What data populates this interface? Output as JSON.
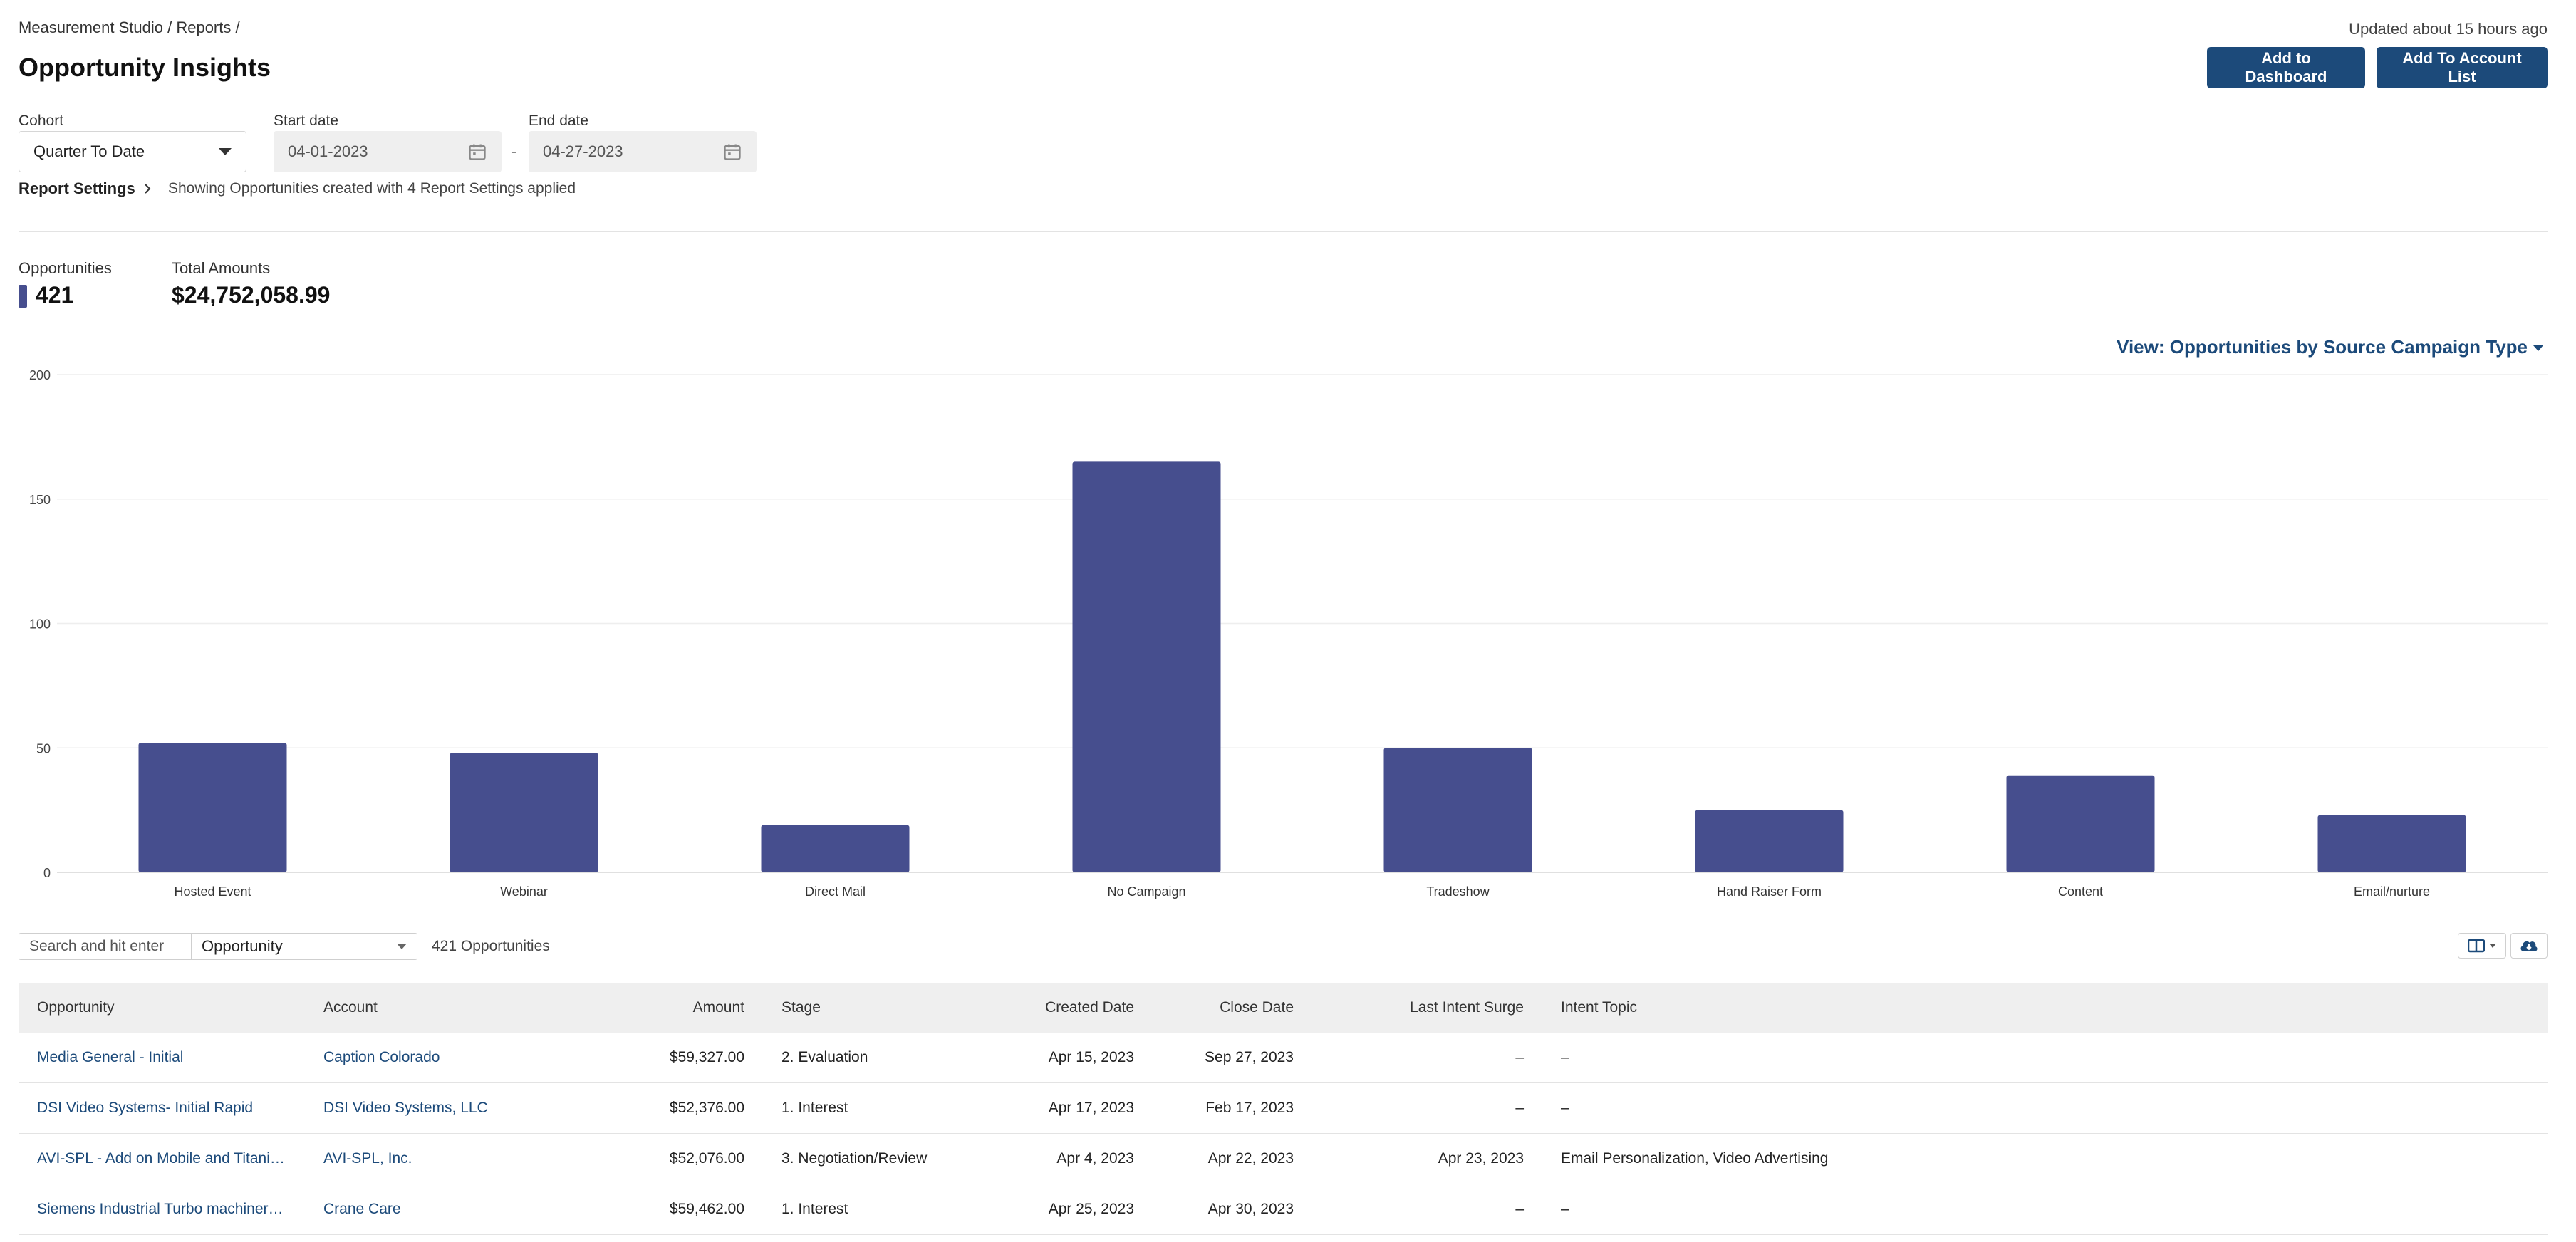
{
  "breadcrumb": "Measurement Studio / Reports /",
  "updated": "Updated about 15 hours ago",
  "title": "Opportunity Insights",
  "actions": {
    "add_dashboard": "Add to Dashboard",
    "add_account_list": "Add To Account List"
  },
  "filters": {
    "cohort_label": "Cohort",
    "cohort_value": "Quarter To Date",
    "start_label": "Start date",
    "start_value": "04-01-2023",
    "end_label": "End date",
    "end_value": "04-27-2023",
    "separator": "-"
  },
  "report_settings": {
    "label": "Report Settings",
    "note": "Showing Opportunities created with 4 Report Settings applied"
  },
  "stats": {
    "opportunities_label": "Opportunities",
    "opportunities_value": "421",
    "total_label": "Total Amounts",
    "total_value": "$24,752,058.99"
  },
  "view_selector": "View: Opportunities by Source Campaign Type",
  "chart_data": {
    "type": "bar",
    "categories": [
      "Hosted Event",
      "Webinar",
      "Direct Mail",
      "No Campaign",
      "Tradeshow",
      "Hand Raiser Form",
      "Content",
      "Email/nurture"
    ],
    "values": [
      52,
      48,
      19,
      165,
      50,
      25,
      39,
      23
    ],
    "ylim": [
      0,
      200
    ],
    "yticks": [
      0,
      50,
      100,
      150,
      200
    ],
    "grid": true,
    "color": "#464e8e"
  },
  "table_controls": {
    "search_placeholder": "Search and hit enter",
    "type_value": "Opportunity",
    "count": "421 Opportunities"
  },
  "table": {
    "columns": [
      "Opportunity",
      "Account",
      "Amount",
      "Stage",
      "Created Date",
      "Close Date",
      "Last Intent Surge",
      "Intent Topic"
    ],
    "rows": [
      [
        "Media General - Initial",
        "Caption Colorado",
        "$59,327.00",
        "2. Evaluation",
        "Apr 15, 2023",
        "Sep 27, 2023",
        "–",
        "–"
      ],
      [
        "DSI Video Systems- Initial Rapid",
        "DSI Video Systems, LLC",
        "$52,376.00",
        "1. Interest",
        "Apr 17, 2023",
        "Feb 17, 2023",
        "–",
        "–"
      ],
      [
        "AVI-SPL - Add on Mobile and Titaniu...",
        "AVI-SPL, Inc.",
        "$52,076.00",
        "3. Negotiation/Review",
        "Apr 4, 2023",
        "Apr 22, 2023",
        "Apr 23, 2023",
        "Email Personalization, Video Advertising"
      ],
      [
        "Siemens Industrial Turbo machinery...",
        "Crane Care",
        "$59,462.00",
        "1. Interest",
        "Apr 25, 2023",
        "Apr 30, 2023",
        "–",
        "–"
      ]
    ]
  },
  "icons": {
    "calendar": "calendar-icon",
    "chevron": "chevron-right-icon",
    "columns": "columns-icon",
    "download": "cloud-download-icon"
  }
}
